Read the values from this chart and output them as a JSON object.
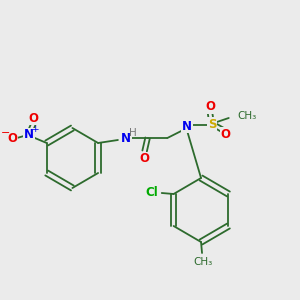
{
  "background_color": "#ebebeb",
  "bond_color": "#2d6b2d",
  "atom_colors": {
    "N": "#0000ee",
    "O": "#ee0000",
    "S": "#ccaa00",
    "Cl": "#00aa00",
    "H": "#777777",
    "C": "#2d6b2d",
    "default": "#2d6b2d"
  },
  "figsize": [
    3.0,
    3.0
  ],
  "dpi": 100
}
